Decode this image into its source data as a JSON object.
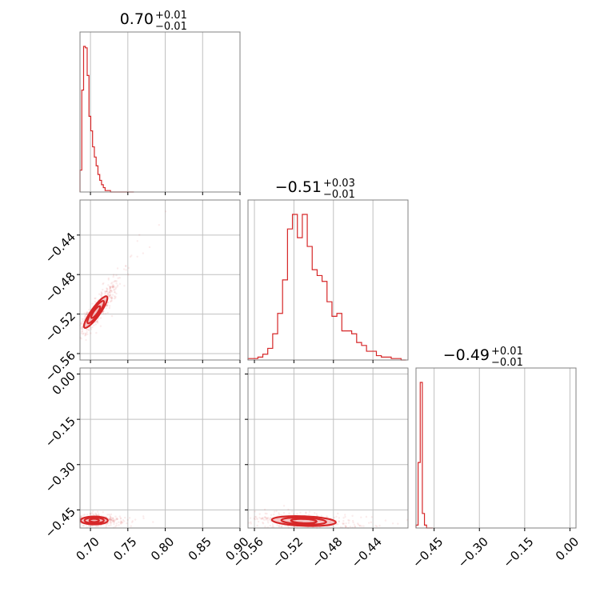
{
  "chart_data": {
    "type": "corner",
    "color": "#d62728",
    "parameters": [
      {
        "title_value": "0.70",
        "title_plus": "+0.01",
        "title_minus": "−0.01",
        "ticks": [
          0.7,
          0.75,
          0.8,
          0.85,
          0.9
        ],
        "tick_labels": [
          "0.70",
          "0.75",
          "0.80",
          "0.85",
          "0.90"
        ],
        "range": [
          0.686,
          0.9
        ]
      },
      {
        "title_value": "−0.51",
        "title_plus": "+0.03",
        "title_minus": "−0.01",
        "ticks": [
          -0.56,
          -0.52,
          -0.48,
          -0.44
        ],
        "tick_labels": [
          "−0.56",
          "−0.52",
          "−0.48",
          "−0.44"
        ],
        "range": [
          -0.5665,
          -0.4045
        ]
      },
      {
        "title_value": "−0.49",
        "title_plus": "+0.01",
        "title_minus": "−0.01",
        "ticks": [
          -0.45,
          -0.3,
          -0.15,
          0.0
        ],
        "tick_labels": [
          "−0.45",
          "−0.30",
          "−0.15",
          "0.00"
        ],
        "range": [
          -0.51,
          0.02
        ]
      }
    ],
    "histograms": [
      {
        "parameter": 0,
        "bins": [
          0.686,
          0.6884,
          0.6908,
          0.6932,
          0.6956,
          0.698,
          0.7004,
          0.7028,
          0.7052,
          0.7076,
          0.71,
          0.7124,
          0.7148,
          0.7172,
          0.7196,
          0.722,
          0.7244,
          0.7268,
          0.7292,
          0.7316,
          0.734,
          0.7364,
          0.7388,
          0.7412,
          0.7436,
          0.746,
          0.7484,
          0.7508,
          0.7532,
          0.7556,
          0.758
        ],
        "counts": [
          15,
          70,
          100,
          99,
          80,
          52,
          42,
          31,
          24,
          18,
          12,
          8,
          5,
          3,
          1,
          1,
          1,
          0,
          0,
          0,
          0,
          0,
          0,
          0,
          0,
          0,
          0,
          0,
          0,
          0
        ]
      },
      {
        "parameter": 1,
        "bins": [
          -0.5665,
          -0.5615,
          -0.5565,
          -0.5515,
          -0.5465,
          -0.5415,
          -0.5365,
          -0.5315,
          -0.5265,
          -0.5215,
          -0.5165,
          -0.5115,
          -0.5065,
          -0.5015,
          -0.4965,
          -0.4915,
          -0.4865,
          -0.4815,
          -0.4765,
          -0.4715,
          -0.4665,
          -0.4615,
          -0.4565,
          -0.4515,
          -0.4465,
          -0.4415,
          -0.4365,
          -0.4315,
          -0.4265,
          -0.4215,
          -0.4165,
          -0.4115,
          -0.4065
        ],
        "counts": [
          1,
          1,
          2,
          4,
          8,
          18,
          32,
          55,
          90,
          100,
          84,
          100,
          78,
          62,
          58,
          54,
          40,
          30,
          32,
          20,
          20,
          18,
          12,
          10,
          6,
          6,
          3,
          2,
          2,
          1,
          1,
          0
        ]
      },
      {
        "parameter": 2,
        "bins": [
          -0.51,
          -0.503,
          -0.496,
          -0.489,
          -0.482,
          -0.475,
          -0.468,
          -0.461,
          -0.454
        ],
        "counts": [
          2,
          45,
          100,
          10,
          2,
          0,
          0,
          0
        ]
      }
    ],
    "panels": [
      {
        "row": 1,
        "col": 0,
        "x_param": 0,
        "y_param": 1,
        "center": [
          0.707,
          -0.518
        ]
      },
      {
        "row": 2,
        "col": 0,
        "x_param": 0,
        "y_param": 2,
        "center": [
          0.705,
          -0.485
        ]
      },
      {
        "row": 2,
        "col": 1,
        "x_param": 1,
        "y_param": 2,
        "center": [
          -0.51,
          -0.487
        ]
      }
    ],
    "grid": true
  }
}
